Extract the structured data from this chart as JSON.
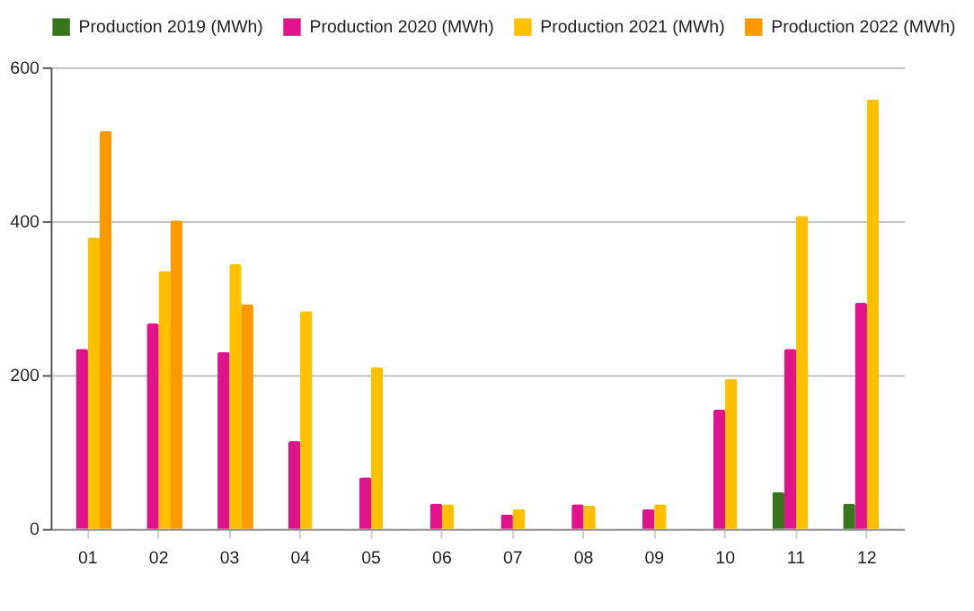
{
  "chart_data": {
    "type": "bar",
    "categories": [
      "01",
      "02",
      "03",
      "04",
      "05",
      "06",
      "07",
      "08",
      "09",
      "10",
      "11",
      "12"
    ],
    "series": [
      {
        "name": "Production 2019 (MWh)",
        "color": "#38761d",
        "values": [
          null,
          null,
          null,
          null,
          null,
          null,
          null,
          null,
          null,
          null,
          48,
          33
        ]
      },
      {
        "name": "Production 2020 (MWh)",
        "color": "#e0138c",
        "values": [
          234,
          267,
          230,
          114,
          67,
          33,
          19,
          32,
          26,
          155,
          234,
          294
        ]
      },
      {
        "name": "Production 2021 (MWh)",
        "color": "#ffc000",
        "values": [
          379,
          335,
          344,
          283,
          210,
          32,
          26,
          30,
          32,
          195,
          407,
          558
        ]
      },
      {
        "name": "Production 2022 (MWh)",
        "color": "#ff9900",
        "values": [
          517,
          401,
          292,
          null,
          null,
          null,
          null,
          null,
          null,
          null,
          null,
          null
        ]
      }
    ],
    "ylim": [
      0,
      600
    ],
    "yticks": [
      0,
      200,
      400,
      600
    ],
    "grid": "y",
    "legend": "top"
  }
}
